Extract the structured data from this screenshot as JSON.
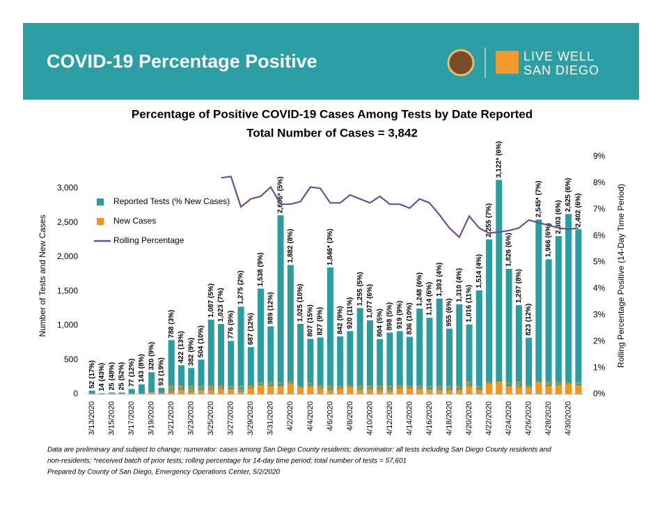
{
  "header": {
    "title": "COVID-19 Percentage Positive",
    "logo_line1": "LIVE WELL",
    "logo_line2": "SAN DIEGO"
  },
  "chart_data": {
    "type": "bar",
    "title": "Percentage of Positive COVID-19 Cases Among Tests by Date Reported",
    "subtitle": "Total Number of Cases = 3,842",
    "y_label": "Number of Tests and New Cases",
    "y2_label": "Rolling Percentage Positive (14-Day Time Period)",
    "categories": [
      "3/13/2020",
      null,
      "3/15/2020",
      null,
      "3/17/2020",
      null,
      "3/19/2020",
      null,
      "3/21/2020",
      null,
      "3/23/2020",
      null,
      "3/25/2020",
      null,
      "3/27/2020",
      null,
      "3/29/2020",
      null,
      "3/31/2020",
      null,
      "4/2/2020",
      null,
      "4/4/2020",
      null,
      "4/6/2020",
      null,
      "4/8/2020",
      null,
      "4/10/2020",
      null,
      "4/12/2020",
      null,
      "4/14/2020",
      null,
      "4/16/2020",
      null,
      "4/18/2020",
      null,
      "4/20/2020",
      null,
      "4/22/2020",
      null,
      "4/24/2020",
      null,
      "4/26/2020",
      null,
      "4/28/2020",
      null,
      "4/30/2020",
      null
    ],
    "series": [
      {
        "name": "Reported Tests (% New Cases)",
        "color": "#2a9d9f",
        "values": [
          52,
          14,
          25,
          25,
          77,
          143,
          320,
          93,
          788,
          422,
          382,
          504,
          1087,
          1023,
          776,
          1275,
          687,
          1538,
          989,
          2606,
          1882,
          1025,
          807,
          827,
          1846,
          842,
          920,
          1255,
          1077,
          804,
          898,
          919,
          836,
          1248,
          1114,
          1393,
          955,
          1310,
          1016,
          1514,
          2255,
          3122,
          1826,
          1297,
          823,
          2545,
          1966,
          2303,
          2625,
          2402
        ],
        "value_labels": [
          "52 (17%)",
          "14 (43%)",
          "25 (48%)",
          "25 (52%)",
          "77 (12%)",
          "143 (8%)",
          "320 (9%)",
          "93 (19%)",
          "788 (3%)",
          "422 (13%)",
          "382 (9%)",
          "504 (10%)",
          "1,087 (5%)",
          "1,023 (7%)",
          "776 (9%)",
          "1,275 (2%)",
          "687 (12%)",
          "1,538 (9%)",
          "989 (12%)",
          "2,606* (5%)",
          "1,882 (8%)",
          "1,025 (10%)",
          "807 (15%)",
          "827 (9%)",
          "1,846* (3%)",
          "842 (9%)",
          "920 (11%)",
          "1,255 (5%)",
          "1,077 (6%)",
          "804 (5%)",
          "898 (5%)",
          "919 (9%)",
          "836 (10%)",
          "1,248 (6%)",
          "1,114 (6%)",
          "1,393 (4%)",
          "955 (6%)",
          "1,310 (4%)",
          "1,016 (11%)",
          "1,514 (4%)",
          "2,255 (7%)",
          "3,122* (6%)",
          "1,826 (6%)",
          "1,297 (8%)",
          "823 (12%)",
          "2,545* (7%)",
          "1,966 (6%)",
          "2,303 (6%)",
          "2,625 (6%)",
          "2,402 (6%)"
        ]
      },
      {
        "name": "New Cases",
        "color": "#f7941d",
        "values": [
          9,
          6,
          12,
          13,
          9,
          11,
          29,
          18,
          25,
          54,
          35,
          51,
          58,
          76,
          71,
          31,
          84,
          131,
          115,
          117,
          146,
          97,
          117,
          78,
          50,
          76,
          98,
          65,
          68,
          43,
          43,
          83,
          82,
          75,
          71,
          55,
          55,
          57,
          109,
          57,
          152,
          183,
          117,
          100,
          98,
          173,
          118,
          132,
          147,
          131
        ],
        "value_labels": [
          null,
          null,
          null,
          null,
          null,
          null,
          null,
          null,
          "25",
          "54",
          "35",
          "51",
          "58",
          "76",
          "71",
          "31",
          "84",
          "131",
          "115",
          "117",
          "146",
          "97",
          "117",
          "78",
          "50",
          "76",
          "98",
          "65",
          "68",
          "43",
          "43",
          "83",
          "82",
          "75",
          "71",
          "55",
          "55",
          "57",
          "109",
          "57",
          "152",
          "183",
          "117",
          "100",
          "98",
          "173",
          "118",
          "132",
          "147",
          "131"
        ]
      },
      {
        "name": "Rolling Percentage",
        "color": "#6b4c9a",
        "type": "line",
        "axis": "y2",
        "values": [
          null,
          null,
          null,
          null,
          null,
          null,
          null,
          null,
          null,
          null,
          null,
          null,
          null,
          8.2,
          8.25,
          7.1,
          7.4,
          7.5,
          7.85,
          7.2,
          7.2,
          7.3,
          7.85,
          7.8,
          7.25,
          7.25,
          7.55,
          7.4,
          7.25,
          7.5,
          7.2,
          7.2,
          7.05,
          7.4,
          7.25,
          6.8,
          6.3,
          5.95,
          6.75,
          6.3,
          6.1,
          6.15,
          6.2,
          6.3,
          6.6,
          6.5,
          6.4,
          6.3,
          6.25,
          6.3
        ]
      }
    ],
    "ylim": [
      0,
      3460
    ],
    "yticks": [
      0,
      500,
      {
        "value": 1000,
        "label": "1,000"
      },
      {
        "value": 1500,
        "label": "1,500"
      },
      {
        "value": 2000,
        "label": "2,000"
      },
      {
        "value": 2500,
        "label": "2,500"
      },
      {
        "value": 3000,
        "label": "3,000"
      }
    ],
    "y2lim": [
      0,
      9
    ],
    "y2ticks": [
      {
        "value": 0,
        "label": "0%"
      },
      {
        "value": 1,
        "label": "1%"
      },
      {
        "value": 2,
        "label": "2%"
      },
      {
        "value": 3,
        "label": "3%"
      },
      {
        "value": 4,
        "label": "4%"
      },
      {
        "value": 5,
        "label": "5%"
      },
      {
        "value": 6,
        "label": "6%"
      },
      {
        "value": 7,
        "label": "7%"
      },
      {
        "value": 8,
        "label": "8%"
      },
      {
        "value": 9,
        "label": "9%"
      }
    ],
    "legend": "upper left",
    "grid": false
  },
  "footnotes": [
    "Data are preliminary and subject to change; numerator: cases among San Diego County residents; denominator: all tests including San Diego County residents and",
    "non-residents; *received batch of prior tests; rolling percentage for 14-day time period; total number of tests = 57,601",
    "Prepared by County of San Diego, Emergency Operations Center, 5/2/2020"
  ]
}
